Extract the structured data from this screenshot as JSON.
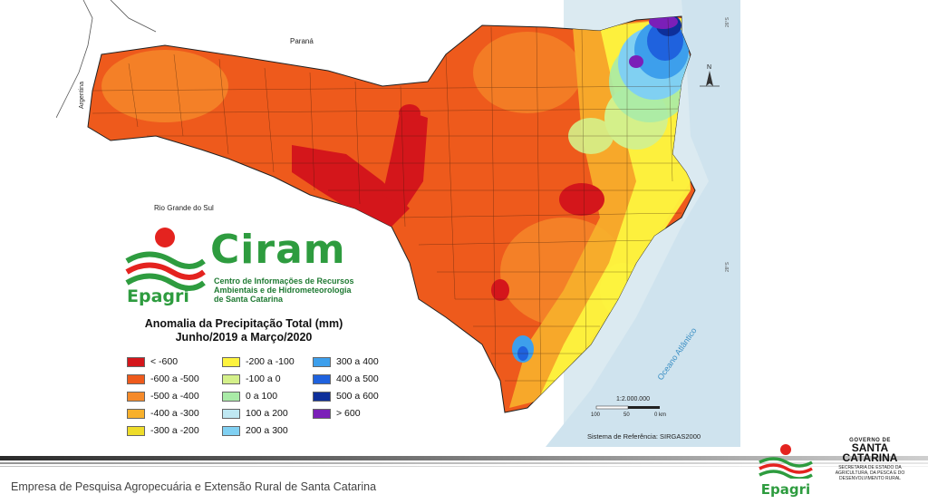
{
  "map": {
    "labels": {
      "parana": "Paraná",
      "argentina": "Argentina",
      "rio_grande_do_sul": "Rio Grande do Sul",
      "ocean": "Oceano Atlântico",
      "north": "N",
      "lat_26": "26°S",
      "lat_28": "28°S"
    },
    "scale": {
      "ratio": "1:2.000.000",
      "ticks": [
        "100",
        "50",
        "0 km"
      ],
      "reference": "Sistema de Referência: SIRGAS2000"
    },
    "colors": {
      "sea": "#d8e8f0",
      "state_base": "#f26a1b",
      "dark_red": "#d42a1a",
      "orange": "#f58a2a",
      "yellow": "#f2e53a",
      "light_green": "#b9e08a",
      "light_blue": "#7ec8f0",
      "blue": "#2e7fe8",
      "purple": "#7a1fb5"
    }
  },
  "ciram": {
    "brand": "Ciram",
    "subtitle_lines": [
      "Centro de Informações de Recursos",
      "Ambientais e de Hidrometeorologia",
      "de Santa Catarina"
    ],
    "epagri": "Epagri"
  },
  "legend": {
    "title_line1": "Anomalia da Precipitação Total  (mm)",
    "title_line2": "Junho/2019 a Março/2020",
    "items": [
      {
        "label": "< -600",
        "color": "#d4161b"
      },
      {
        "label": "-600 a -500",
        "color": "#ee5a1c"
      },
      {
        "label": "-500 a -400",
        "color": "#f58a2a"
      },
      {
        "label": "-400 a -300",
        "color": "#f7b02c"
      },
      {
        "label": "-300 a -200",
        "color": "#eedc2a"
      },
      {
        "label": "-200 a -100",
        "color": "#fdf33e"
      },
      {
        "label": "-100 a 0",
        "color": "#d4f08a"
      },
      {
        "label": "0 a 100",
        "color": "#a9eba7"
      },
      {
        "label": "100 a 200",
        "color": "#bfe8f2"
      },
      {
        "label": "200 a 300",
        "color": "#80d0f2"
      },
      {
        "label": "300 a 400",
        "color": "#3d9fec"
      },
      {
        "label": "400 a 500",
        "color": "#1f62de"
      },
      {
        "label": "500 a 600",
        "color": "#0e2f9a"
      },
      {
        "label": "> 600",
        "color": "#7b1fb8"
      }
    ]
  },
  "footer": {
    "text": "Empresa de Pesquisa Agropecuária e Extensão Rural de Santa Catarina",
    "epagri": "Epagri",
    "gov_label": "GOVERNO DE",
    "state_name_1": "SANTA",
    "state_name_2": "CATARINA",
    "secretariat": "SECRETARIA DE ESTADO DA AGRICULTURA, DA PESCA E DO DESENVOLVIMENTO RURAL"
  }
}
